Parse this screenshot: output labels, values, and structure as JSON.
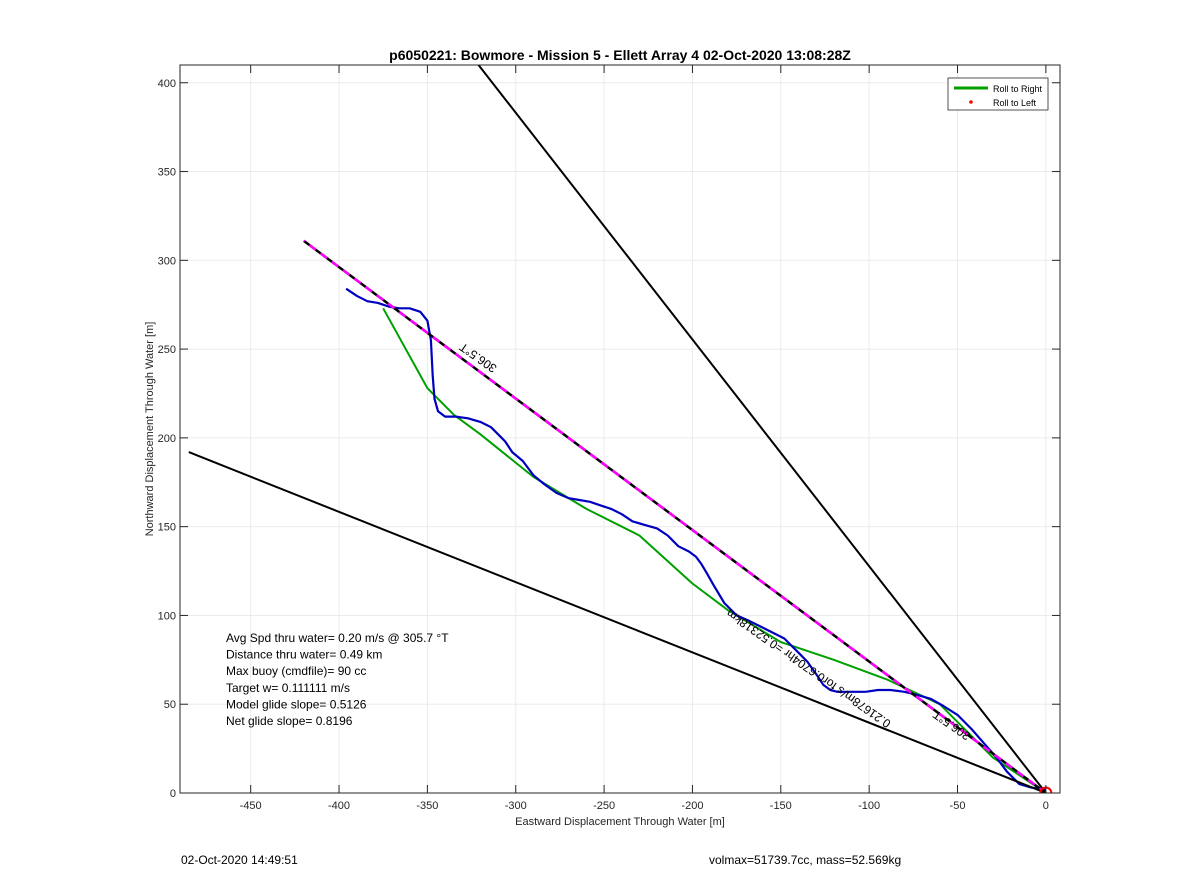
{
  "chart_data": {
    "type": "line",
    "title": "p6050221: Bowmore - Mission 5 - Ellett Array 4 02-Oct-2020 13:08:28Z",
    "xlabel": "Eastward Displacement Through Water [m]",
    "ylabel": "Northward Displacement Through Water [m]",
    "xlim": [
      -490,
      8
    ],
    "ylim": [
      0,
      410
    ],
    "xticks": [
      -450,
      -400,
      -350,
      -300,
      -250,
      -200,
      -150,
      -100,
      -50,
      0
    ],
    "yticks": [
      0,
      50,
      100,
      150,
      200,
      250,
      300,
      350,
      400
    ],
    "grid": true,
    "legend_position": "top-right",
    "legend": [
      {
        "label": "Roll to Right",
        "color": "#00a000",
        "style": "line"
      },
      {
        "label": "Roll to Left",
        "color": "#ff0000",
        "style": "dot"
      }
    ],
    "series": [
      {
        "name": "Roll to Right",
        "color": "#00a000",
        "x": [
          0,
          -30,
          -60,
          -90,
          -120,
          -150,
          -180,
          -200,
          -230,
          -260,
          -290,
          -320,
          -335,
          -350,
          -375
        ],
        "y": [
          0,
          20,
          50,
          64,
          75,
          85,
          103,
          118,
          145,
          160,
          178,
          202,
          213,
          228,
          273
        ]
      },
      {
        "color": "#0000c0",
        "x": [
          0,
          -8,
          -15,
          -22,
          -28,
          -35,
          -42,
          -50,
          -58,
          -65,
          -72,
          -80,
          -88,
          -95,
          -102,
          -110,
          -118,
          -122,
          -126,
          -130,
          -135,
          -140,
          -148,
          -158,
          -168,
          -175,
          -182,
          -188,
          -192,
          -195,
          -198,
          -202,
          -208,
          -214,
          -220,
          -227,
          -234,
          -240,
          -246,
          -252,
          -258,
          -264,
          -270,
          -277,
          -284,
          -290,
          -296,
          -302,
          -306,
          -310,
          -314,
          -320,
          -327,
          -334,
          -340,
          -344,
          -346,
          -347,
          -348,
          -350,
          -354,
          -360,
          -366,
          -372,
          -378,
          -384,
          -390,
          -396
        ],
        "y": [
          2,
          3,
          5,
          12,
          20,
          28,
          36,
          44,
          49,
          53,
          55,
          57,
          58,
          58,
          57,
          57,
          57,
          58,
          61,
          67,
          74,
          79,
          87,
          92,
          97,
          100,
          107,
          117,
          124,
          129,
          133,
          136,
          139,
          145,
          149,
          151,
          153,
          157,
          160,
          162,
          164,
          165,
          166,
          169,
          174,
          179,
          187,
          192,
          198,
          202,
          206,
          209,
          211,
          212,
          212,
          215,
          222,
          235,
          255,
          266,
          271,
          273,
          273,
          274,
          276,
          277,
          280,
          284
        ]
      },
      {
        "color": "#ff00ff",
        "style": "dashed-black-magenta",
        "x": [
          0,
          -420
        ],
        "y": [
          0,
          311
        ]
      },
      {
        "color": "#000000",
        "x": [
          0,
          -485
        ],
        "y": [
          0,
          192
        ]
      },
      {
        "color": "#000000",
        "x": [
          0,
          -325
        ],
        "y": [
          0,
          415
        ]
      },
      {
        "color": "#ff0000",
        "marker": "circle",
        "x": [
          0
        ],
        "y": [
          0
        ]
      }
    ],
    "annotations": [
      {
        "text": "306.5°T",
        "x": -320,
        "y": 247,
        "rotate": 215
      },
      {
        "text": "306.5°T",
        "x": -52,
        "y": 40,
        "rotate": 215
      },
      {
        "text": "0.21678m/s for0.6704hr =0.52318km",
        "x": -133,
        "y": 72,
        "rotate": 215
      }
    ],
    "stats": [
      "Avg Spd thru water=  0.20 m/s @ 305.7 °T",
      "Distance thru water=  0.49 km",
      "Max buoy (cmdfile)= 90 cc",
      "Target w= 0.111111 m/s",
      "Model glide slope= 0.5126",
      "Net glide slope= 0.8196"
    ],
    "colors": {
      "axes": "#262626",
      "grid": "#ebebeb"
    }
  },
  "footer": {
    "left": "02-Oct-2020 14:49:51",
    "right": "volmax=51739.7cc, mass=52.569kg"
  }
}
